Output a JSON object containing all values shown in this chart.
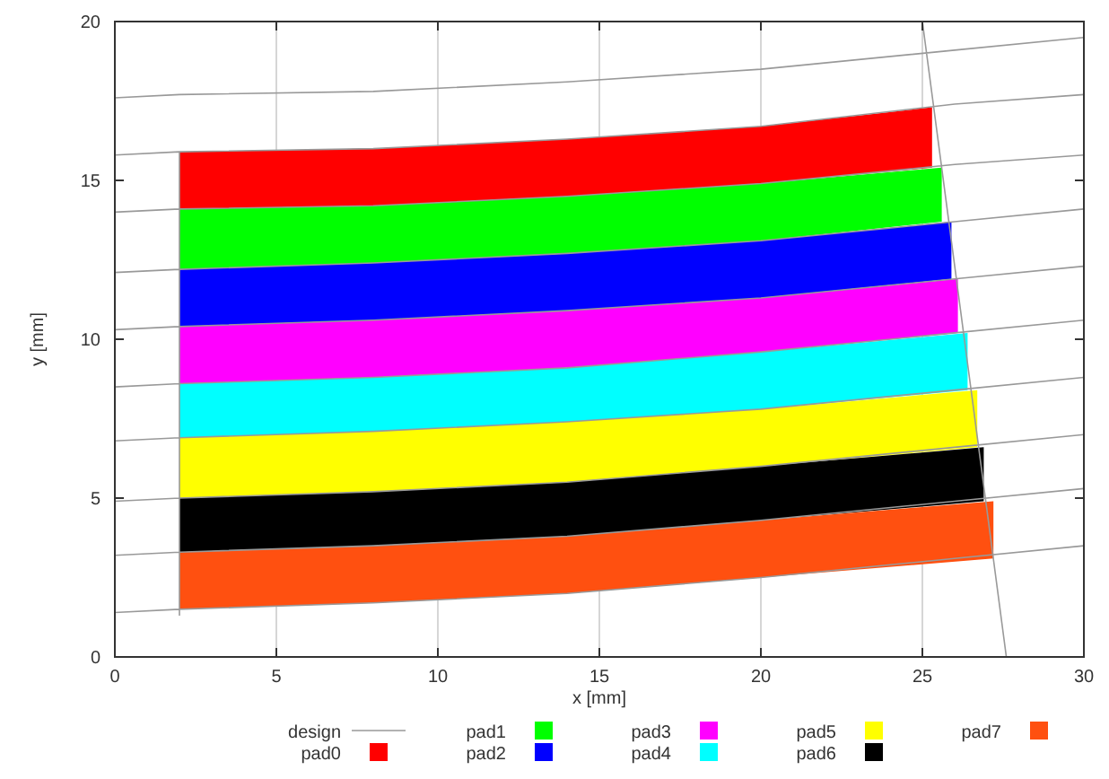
{
  "chart_data": {
    "type": "area",
    "xlabel": "x [mm]",
    "ylabel": "y [mm]",
    "xlim": [
      0,
      30
    ],
    "ylim": [
      0,
      20
    ],
    "xticks": [
      0,
      5,
      10,
      15,
      20,
      25,
      30
    ],
    "yticks": [
      0,
      5,
      10,
      15,
      20
    ],
    "grid": "x",
    "legend": "bottom",
    "series": [
      {
        "name": "design",
        "type": "line",
        "color": "#999999",
        "x": [
          0,
          2,
          8,
          14,
          20,
          26,
          30,
          null,
          0,
          2,
          8,
          14,
          20,
          26,
          30,
          null,
          0,
          2,
          8,
          14,
          20,
          26,
          30,
          null,
          0,
          2,
          8,
          14,
          20,
          26,
          30,
          null,
          0,
          2,
          8,
          14,
          20,
          26,
          30,
          null,
          0,
          2,
          8,
          14,
          20,
          26,
          30,
          null,
          0,
          2,
          8,
          14,
          20,
          26,
          30,
          null,
          0,
          2,
          8,
          14,
          20,
          26,
          30,
          null,
          0,
          2,
          8,
          14,
          20,
          26,
          30,
          null,
          0,
          2,
          8,
          14,
          20,
          26,
          30,
          null,
          2,
          2,
          null,
          27.6,
          25.0
        ],
        "values": [
          17.6,
          17.7,
          17.8,
          18.1,
          18.5,
          19.1,
          19.5,
          null,
          15.8,
          15.9,
          16.0,
          16.3,
          16.7,
          17.4,
          17.7,
          null,
          14.0,
          14.1,
          14.2,
          14.5,
          14.9,
          15.5,
          15.8,
          null,
          12.1,
          12.2,
          12.4,
          12.7,
          13.1,
          13.7,
          14.1,
          null,
          10.3,
          10.4,
          10.6,
          10.9,
          11.3,
          11.9,
          12.3,
          null,
          8.5,
          8.6,
          8.8,
          9.1,
          9.6,
          10.2,
          10.6,
          null,
          6.8,
          6.9,
          7.1,
          7.4,
          7.8,
          8.4,
          8.8,
          null,
          4.9,
          5.0,
          5.2,
          5.5,
          6.0,
          6.6,
          7.0,
          null,
          3.2,
          3.3,
          3.5,
          3.8,
          4.3,
          4.9,
          5.3,
          null,
          1.4,
          1.5,
          1.7,
          2.0,
          2.5,
          3.1,
          3.5,
          null,
          1.3,
          15.9,
          null,
          0,
          20
        ]
      },
      {
        "name": "pad0",
        "color": "#ff0000",
        "x": [
          2,
          8,
          14,
          20,
          25.3
        ],
        "values": [
          null,
          null,
          null,
          null,
          null
        ],
        "upper": [
          15.9,
          16.0,
          16.3,
          16.7,
          17.3
        ],
        "lower": [
          14.1,
          14.2,
          14.5,
          14.9,
          15.4
        ]
      },
      {
        "name": "pad1",
        "color": "#00ff00",
        "x": [
          2,
          8,
          14,
          20,
          25.6
        ],
        "values": [
          null,
          null,
          null,
          null,
          null
        ],
        "upper": [
          14.1,
          14.2,
          14.5,
          14.9,
          15.4
        ],
        "lower": [
          12.2,
          12.4,
          12.7,
          13.1,
          13.7
        ]
      },
      {
        "name": "pad2",
        "color": "#0000ff",
        "x": [
          2,
          8,
          14,
          20,
          25.9
        ],
        "values": [
          null,
          null,
          null,
          null,
          null
        ],
        "upper": [
          12.2,
          12.4,
          12.7,
          13.1,
          13.7
        ],
        "lower": [
          10.4,
          10.6,
          10.9,
          11.3,
          11.9
        ]
      },
      {
        "name": "pad3",
        "color": "#ff00ff",
        "x": [
          2,
          8,
          14,
          20,
          26.1
        ],
        "values": [
          null,
          null,
          null,
          null,
          null
        ],
        "upper": [
          10.4,
          10.6,
          10.9,
          11.3,
          11.9
        ],
        "lower": [
          8.6,
          8.8,
          9.1,
          9.6,
          10.2
        ]
      },
      {
        "name": "pad4",
        "color": "#00ffff",
        "x": [
          2,
          8,
          14,
          20,
          26.4
        ],
        "values": [
          null,
          null,
          null,
          null,
          null
        ],
        "upper": [
          8.6,
          8.8,
          9.1,
          9.6,
          10.2
        ],
        "lower": [
          6.9,
          7.1,
          7.4,
          7.8,
          8.4
        ]
      },
      {
        "name": "pad5",
        "color": "#ffff00",
        "x": [
          2,
          8,
          14,
          20,
          26.7
        ],
        "values": [
          null,
          null,
          null,
          null,
          null
        ],
        "upper": [
          6.9,
          7.1,
          7.4,
          7.8,
          8.4
        ],
        "lower": [
          5.0,
          5.2,
          5.5,
          6.0,
          6.6
        ]
      },
      {
        "name": "pad6",
        "color": "#000000",
        "x": [
          2,
          8,
          14,
          20,
          26.9
        ],
        "values": [
          null,
          null,
          null,
          null,
          null
        ],
        "upper": [
          5.0,
          5.2,
          5.5,
          6.0,
          6.6
        ],
        "lower": [
          3.3,
          3.5,
          3.8,
          4.3,
          4.9
        ]
      },
      {
        "name": "pad7",
        "color": "#ff5010",
        "x": [
          2,
          8,
          14,
          20,
          27.2
        ],
        "values": [
          null,
          null,
          null,
          null,
          null
        ],
        "upper": [
          3.3,
          3.5,
          3.8,
          4.3,
          4.9
        ],
        "lower": [
          1.5,
          1.7,
          2.0,
          2.5,
          3.1
        ]
      }
    ]
  }
}
